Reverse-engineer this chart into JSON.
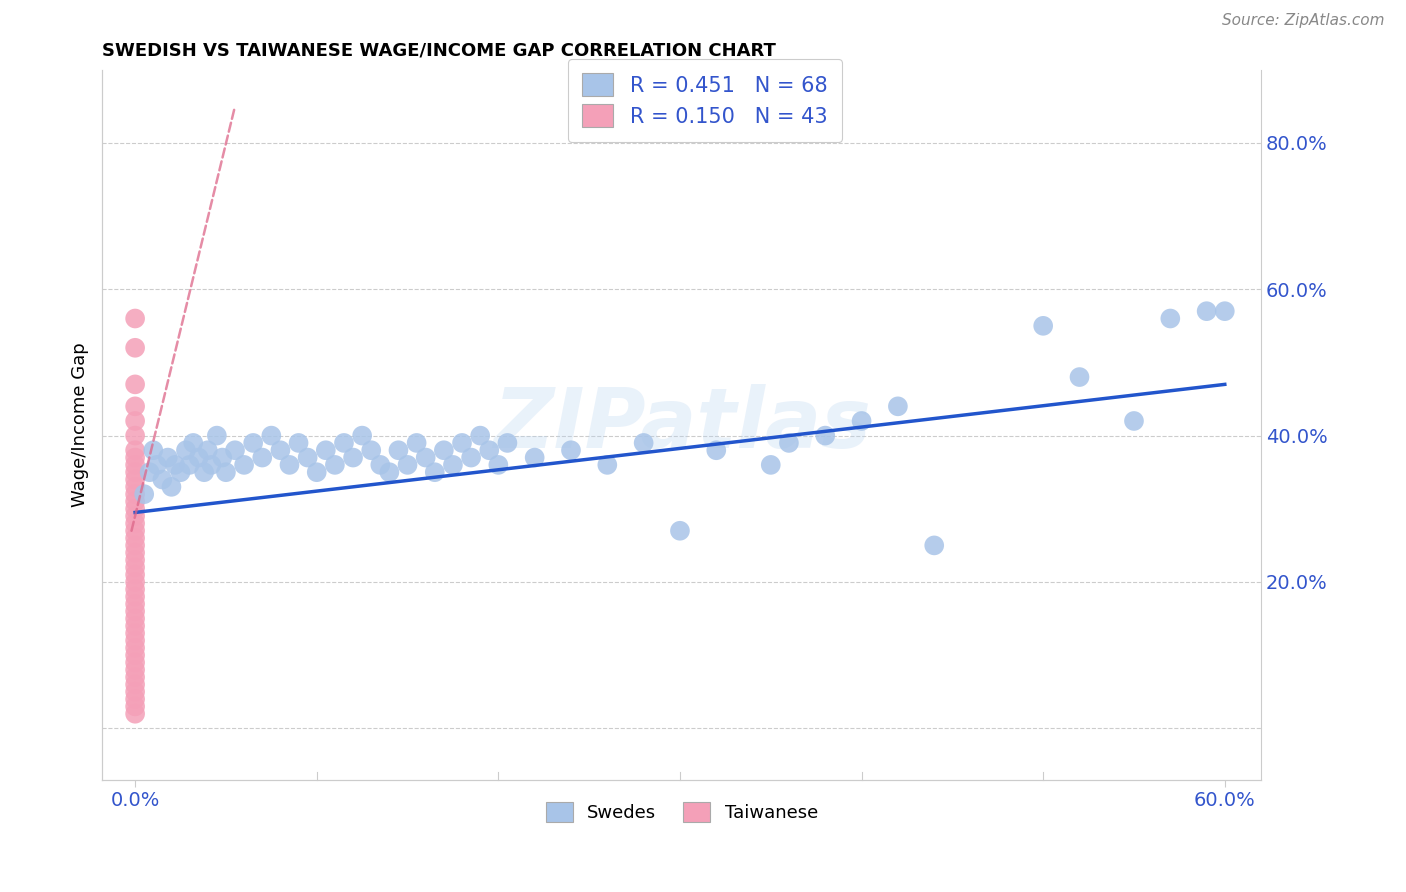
{
  "title": "SWEDISH VS TAIWANESE WAGE/INCOME GAP CORRELATION CHART",
  "source": "Source: ZipAtlas.com",
  "ylabel": "Wage/Income Gap",
  "watermark": "ZIPatlas",
  "blue_R": 0.451,
  "blue_N": 68,
  "pink_R": 0.15,
  "pink_N": 43,
  "blue_color": "#a8c4e8",
  "pink_color": "#f4a0b8",
  "blue_line_color": "#2255cc",
  "pink_line_color": "#dd6688",
  "legend_text_color": "#3355cc",
  "grid_color": "#cccccc",
  "blue_scatter_x": [
    0.005,
    0.008,
    0.01,
    0.012,
    0.015,
    0.018,
    0.02,
    0.022,
    0.025,
    0.028,
    0.03,
    0.032,
    0.035,
    0.038,
    0.04,
    0.042,
    0.045,
    0.048,
    0.05,
    0.055,
    0.06,
    0.065,
    0.07,
    0.075,
    0.08,
    0.085,
    0.09,
    0.095,
    0.1,
    0.105,
    0.11,
    0.115,
    0.12,
    0.125,
    0.13,
    0.135,
    0.14,
    0.145,
    0.15,
    0.155,
    0.16,
    0.165,
    0.17,
    0.175,
    0.18,
    0.185,
    0.19,
    0.195,
    0.2,
    0.205,
    0.22,
    0.24,
    0.26,
    0.28,
    0.3,
    0.32,
    0.35,
    0.36,
    0.38,
    0.4,
    0.42,
    0.44,
    0.5,
    0.52,
    0.55,
    0.57,
    0.59,
    0.6
  ],
  "blue_scatter_y": [
    0.32,
    0.35,
    0.38,
    0.36,
    0.34,
    0.37,
    0.33,
    0.36,
    0.35,
    0.38,
    0.36,
    0.39,
    0.37,
    0.35,
    0.38,
    0.36,
    0.4,
    0.37,
    0.35,
    0.38,
    0.36,
    0.39,
    0.37,
    0.4,
    0.38,
    0.36,
    0.39,
    0.37,
    0.35,
    0.38,
    0.36,
    0.39,
    0.37,
    0.4,
    0.38,
    0.36,
    0.35,
    0.38,
    0.36,
    0.39,
    0.37,
    0.35,
    0.38,
    0.36,
    0.39,
    0.37,
    0.4,
    0.38,
    0.36,
    0.39,
    0.37,
    0.38,
    0.36,
    0.39,
    0.27,
    0.38,
    0.36,
    0.39,
    0.4,
    0.42,
    0.44,
    0.25,
    0.55,
    0.48,
    0.42,
    0.56,
    0.57,
    0.57
  ],
  "pink_scatter_x": [
    0.0,
    0.0,
    0.0,
    0.0,
    0.0,
    0.0,
    0.0,
    0.0,
    0.0,
    0.0,
    0.0,
    0.0,
    0.0,
    0.0,
    0.0,
    0.0,
    0.0,
    0.0,
    0.0,
    0.0,
    0.0,
    0.0,
    0.0,
    0.0,
    0.0,
    0.0,
    0.0,
    0.0,
    0.0,
    0.0,
    0.0,
    0.0,
    0.0,
    0.0,
    0.0,
    0.0,
    0.0,
    0.0,
    0.0,
    0.0,
    0.0,
    0.0,
    0.0
  ],
  "pink_scatter_y": [
    0.56,
    0.52,
    0.47,
    0.44,
    0.42,
    0.4,
    0.38,
    0.37,
    0.36,
    0.35,
    0.34,
    0.33,
    0.32,
    0.31,
    0.3,
    0.29,
    0.28,
    0.27,
    0.26,
    0.25,
    0.24,
    0.23,
    0.22,
    0.21,
    0.2,
    0.19,
    0.18,
    0.17,
    0.16,
    0.15,
    0.14,
    0.13,
    0.12,
    0.11,
    0.1,
    0.09,
    0.08,
    0.07,
    0.06,
    0.05,
    0.04,
    0.03,
    0.02
  ],
  "blue_line_x0": 0.0,
  "blue_line_x1": 0.6,
  "blue_line_y0": 0.295,
  "blue_line_y1": 0.47,
  "pink_line_x0": -0.002,
  "pink_line_x1": 0.055,
  "pink_line_y0": 0.27,
  "pink_line_y1": 0.85,
  "xmin": -0.018,
  "xmax": 0.62,
  "ymin": -0.07,
  "ymax": 0.9,
  "ytick_vals": [
    0.0,
    0.2,
    0.4,
    0.6,
    0.8
  ],
  "ytick_right_labels": [
    "",
    "20.0%",
    "40.0%",
    "60.0%",
    "80.0%"
  ],
  "xtick_left_label": "0.0%",
  "xtick_right_label": "60.0%"
}
